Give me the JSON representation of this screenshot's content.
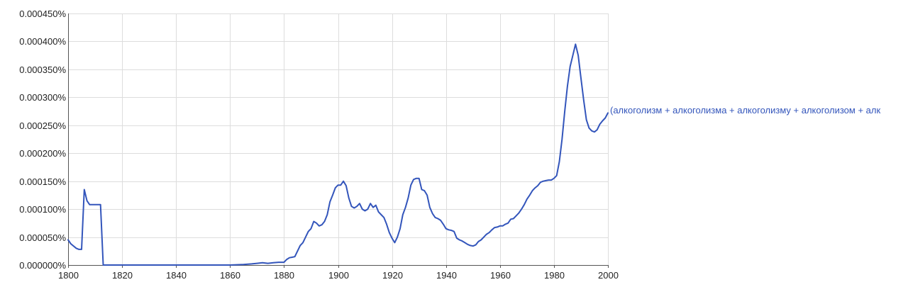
{
  "chart_data": {
    "type": "line",
    "title": "",
    "xlabel": "",
    "ylabel": "",
    "xlim": [
      1800,
      2000
    ],
    "ylim": [
      0,
      0.00045
    ],
    "grid": true,
    "legend": "end-of-line",
    "x_ticks": [
      1800,
      1820,
      1840,
      1860,
      1880,
      1900,
      1920,
      1940,
      1960,
      1980,
      2000
    ],
    "y_ticks": [
      0,
      5e-05,
      0.0001,
      0.00015,
      0.0002,
      0.00025,
      0.0003,
      0.00035,
      0.0004,
      0.00045
    ],
    "x_tick_labels": [
      "1800",
      "1820",
      "1840",
      "1860",
      "1880",
      "1900",
      "1920",
      "1940",
      "1960",
      "1980",
      "2000"
    ],
    "y_tick_labels": [
      "0.000000%",
      "0.000050%",
      "0.000100%",
      "0.000150%",
      "0.000200%",
      "0.000250%",
      "0.000300%",
      "0.000350%",
      "0.000400%",
      "0.000450%"
    ],
    "series": [
      {
        "name": "(алкоголизм + алкоголизма + алкоголизму + алкоголизом + алк",
        "color": "#3355bb",
        "x": [
          1800,
          1801,
          1803,
          1804,
          1805,
          1806,
          1807,
          1808,
          1811,
          1812,
          1813,
          1830,
          1850,
          1860,
          1865,
          1868,
          1870,
          1872,
          1874,
          1876,
          1878,
          1880,
          1881,
          1882,
          1883,
          1884,
          1885,
          1886,
          1887,
          1888,
          1889,
          1890,
          1891,
          1892,
          1893,
          1894,
          1895,
          1896,
          1897,
          1898,
          1899,
          1900,
          1901,
          1902,
          1903,
          1904,
          1905,
          1906,
          1907,
          1908,
          1909,
          1910,
          1911,
          1912,
          1913,
          1914,
          1915,
          1916,
          1917,
          1918,
          1919,
          1920,
          1921,
          1922,
          1923,
          1924,
          1925,
          1926,
          1927,
          1928,
          1929,
          1930,
          1931,
          1932,
          1933,
          1934,
          1935,
          1936,
          1937,
          1938,
          1939,
          1940,
          1941,
          1942,
          1943,
          1944,
          1945,
          1946,
          1947,
          1948,
          1949,
          1950,
          1951,
          1952,
          1953,
          1954,
          1955,
          1956,
          1957,
          1958,
          1959,
          1960,
          1961,
          1962,
          1963,
          1964,
          1965,
          1966,
          1967,
          1968,
          1969,
          1970,
          1971,
          1972,
          1973,
          1974,
          1975,
          1976,
          1977,
          1978,
          1979,
          1980,
          1981,
          1982,
          1983,
          1984,
          1985,
          1986,
          1987,
          1988,
          1989,
          1990,
          1991,
          1992,
          1993,
          1994,
          1995,
          1996,
          1997,
          1998,
          1999,
          2000
        ],
        "values": [
          4.5e-05,
          3.8e-05,
          3e-05,
          2.8e-05,
          2.8e-05,
          0.000135,
          0.000115,
          0.000108,
          0.000108,
          0.000108,
          0.0,
          0.0,
          0.0,
          0.0,
          1e-06,
          2e-06,
          3e-06,
          4e-06,
          3e-06,
          4e-06,
          5e-06,
          5e-06,
          1e-05,
          1.3e-05,
          1.4e-05,
          1.5e-05,
          2.5e-05,
          3.5e-05,
          4e-05,
          5e-05,
          6e-05,
          6.5e-05,
          7.8e-05,
          7.5e-05,
          7e-05,
          7.2e-05,
          7.8e-05,
          9e-05,
          0.000113,
          0.000125,
          0.000138,
          0.000143,
          0.000143,
          0.00015,
          0.000142,
          0.00012,
          0.000105,
          0.000102,
          0.000105,
          0.00011,
          0.0001,
          9.7e-05,
          0.0001,
          0.00011,
          0.000103,
          0.000107,
          9.5e-05,
          9e-05,
          8.5e-05,
          7.3e-05,
          5.8e-05,
          4.8e-05,
          4e-05,
          5e-05,
          6.5e-05,
          9e-05,
          0.000103,
          0.00012,
          0.000143,
          0.000153,
          0.000155,
          0.000155,
          0.000135,
          0.000133,
          0.000125,
          0.000103,
          9.2e-05,
          8.5e-05,
          8.3e-05,
          8e-05,
          7.3e-05,
          6.5e-05,
          6.3e-05,
          6.2e-05,
          6e-05,
          4.8e-05,
          4.5e-05,
          4.3e-05,
          4e-05,
          3.7e-05,
          3.5e-05,
          3.4e-05,
          3.6e-05,
          4.2e-05,
          4.5e-05,
          5e-05,
          5.5e-05,
          5.8e-05,
          6.3e-05,
          6.7e-05,
          6.8e-05,
          7e-05,
          7e-05,
          7.3e-05,
          7.5e-05,
          8.2e-05,
          8.3e-05,
          8.8e-05,
          9.3e-05,
          0.0001,
          0.000108,
          0.000118,
          0.000125,
          0.000133,
          0.000138,
          0.000142,
          0.000148,
          0.00015,
          0.000151,
          0.000152,
          0.000152,
          0.000155,
          0.00016,
          0.000185,
          0.000225,
          0.000275,
          0.00032,
          0.000355,
          0.000375,
          0.000395,
          0.000375,
          0.000335,
          0.000295,
          0.00026,
          0.000245,
          0.00024,
          0.000238,
          0.000242,
          0.000252,
          0.000258,
          0.000263,
          0.000272
        ]
      }
    ]
  }
}
